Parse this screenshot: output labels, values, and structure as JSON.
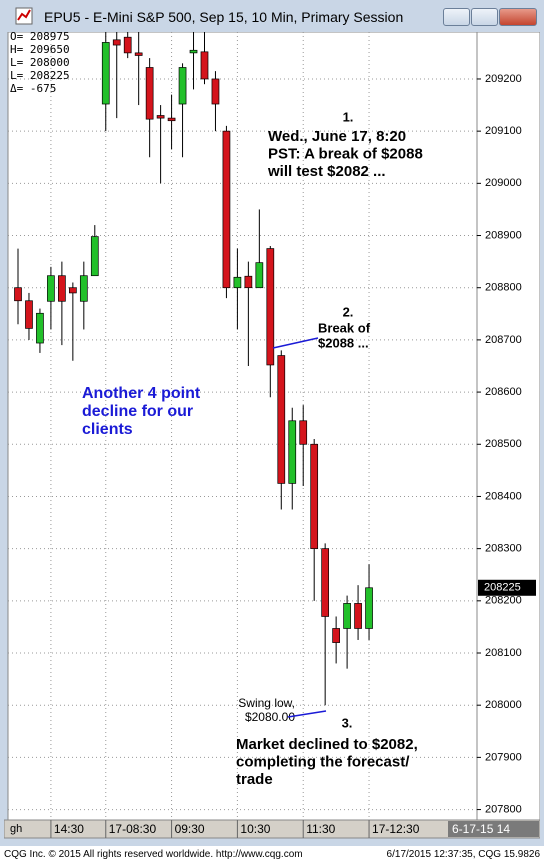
{
  "window": {
    "title": "EPU5 - E-Mini S&P 500, Sep 15, 10 Min, Primary Session"
  },
  "chart_data": {
    "type": "candlestick",
    "open": [
      208800,
      208775,
      208694,
      208774,
      208823,
      208800,
      208774,
      208823,
      209152,
      209275,
      209280,
      209250,
      209222,
      209130,
      209125,
      209152,
      209250,
      209252,
      209200,
      209100,
      208800,
      208822,
      208800,
      208875,
      208670,
      208425,
      208545,
      208500,
      208300,
      208147,
      208147,
      208195,
      208147
    ],
    "high": [
      208875,
      208790,
      208760,
      208840,
      208850,
      208810,
      208850,
      208920,
      209290,
      209290,
      209290,
      209290,
      209240,
      209150,
      209170,
      209230,
      209290,
      209290,
      209215,
      209110,
      208875,
      208850,
      208950,
      208880,
      208680,
      208570,
      208575,
      208510,
      208310,
      208170,
      208210,
      208230,
      208270
    ],
    "low": [
      208730,
      208700,
      208675,
      208720,
      208690,
      208660,
      208720,
      208823,
      209100,
      209125,
      209240,
      209150,
      209050,
      209000,
      209065,
      209050,
      209180,
      209190,
      209100,
      208780,
      208720,
      208650,
      208800,
      208590,
      208375,
      208375,
      208420,
      208200,
      208000,
      208080,
      208070,
      208125,
      208125
    ],
    "close": [
      208775,
      208722,
      208751,
      208823,
      208774,
      208790,
      208823,
      208898,
      209270,
      209265,
      209250,
      209245,
      209123,
      209125,
      209120,
      209222,
      209255,
      209200,
      209152,
      208800,
      208820,
      208800,
      208848,
      208652,
      208425,
      208545,
      208500,
      208300,
      208170,
      208120,
      208195,
      208147,
      208225
    ],
    "up_color": "#22c02a",
    "down_color": "#d4141c",
    "ylim": [
      207780,
      209290
    ],
    "yticks": [
      207800,
      207900,
      208000,
      208100,
      208200,
      208300,
      208400,
      208500,
      208600,
      208700,
      208800,
      208900,
      209000,
      209100,
      209200
    ],
    "xticks": [
      {
        "value": 3,
        "label": "14:30"
      },
      {
        "value": 8,
        "label": "17-08:30"
      },
      {
        "value": 14,
        "label": "09:30"
      },
      {
        "value": 20,
        "label": "10:30"
      },
      {
        "value": 26,
        "label": "11:30"
      },
      {
        "value": 32,
        "label": "17-12:30"
      }
    ],
    "grid": true,
    "last_price": 208225,
    "axis_left_label": "gh",
    "axis_date_label": "6-17-15 14",
    "info": [
      "O= 208975",
      "H= 209650",
      "L= 208000",
      "L= 208225",
      "Δ=   -675"
    ],
    "annotations": [
      {
        "number": "1.",
        "lines": [
          "Wed., June 17, 8:20",
          "PST: A break of $2088",
          "will test $2082 ..."
        ]
      },
      {
        "number": "2.",
        "lines": [
          "Break of",
          "$2088 ..."
        ]
      },
      {
        "number": "",
        "lines": [
          "Another 4 point",
          "decline for our",
          "clients"
        ]
      },
      {
        "number": "",
        "lines": [
          "Swing low,",
          "$2080.00"
        ]
      },
      {
        "number": "3.",
        "lines": [
          "Market declined to $2082,",
          "completing the forecast/",
          "trade"
        ]
      }
    ]
  },
  "footer": {
    "left": "CQG Inc. © 2015 All rights reserved worldwide. http://www.cqg.com",
    "right": "6/17/2015 12:37:35, CQG 15.9826"
  }
}
